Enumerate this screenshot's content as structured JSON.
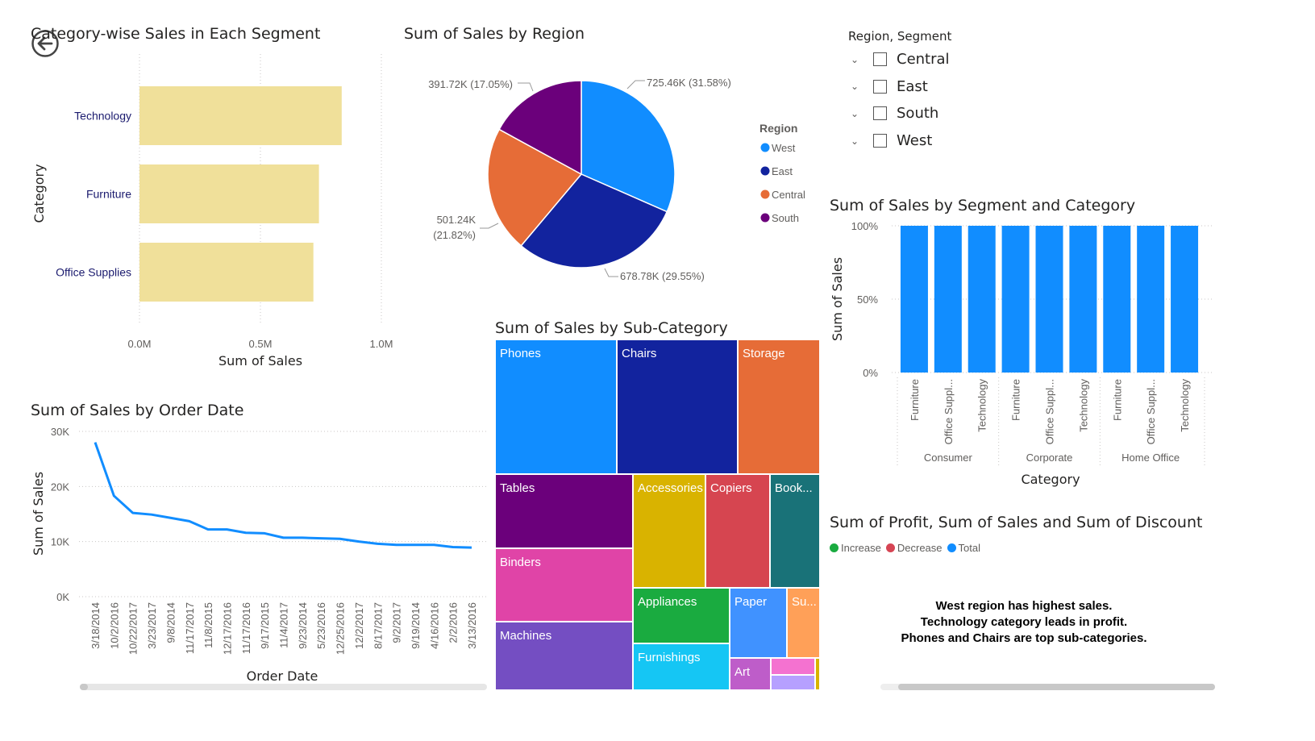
{
  "back_button": {
    "icon": "back-arrow-icon"
  },
  "bar_chart": {
    "title": "Category-wise Sales in Each Segment",
    "color": "#f0e09a"
  },
  "pie_chart": {
    "title": "Sum of Sales by Region",
    "legend_title": "Region"
  },
  "slicer": {
    "title": "Region, Segment",
    "items": [
      "Central",
      "East",
      "South",
      "West"
    ]
  },
  "column_chart": {
    "title": "Sum of Sales by Segment and Category",
    "color": "#118dff"
  },
  "line_chart": {
    "title": "Sum of Sales by Order Date",
    "color": "#118dff"
  },
  "treemap": {
    "title": "Sum of Sales by Sub-Category"
  },
  "waterfall": {
    "title": "Sum of Profit, Sum of Sales and Sum of Discount",
    "legend": [
      {
        "label": "Increase",
        "color": "#1aab40"
      },
      {
        "label": "Decrease",
        "color": "#d64554"
      },
      {
        "label": "Total",
        "color": "#118dff"
      }
    ]
  },
  "insights": {
    "line1": "West region has highest sales.",
    "line2": "Technology category leads in profit.",
    "line3": "Phones and Chairs are top sub-categories."
  },
  "chart_data": [
    {
      "type": "bar",
      "title": "Category-wise Sales in Each Segment",
      "categories": [
        "Technology",
        "Furniture",
        "Office Supplies"
      ],
      "values": [
        0.836,
        0.742,
        0.719
      ],
      "xlabel": "Sum of Sales",
      "ylabel": "Category",
      "xticks": [
        "0.0M",
        "0.5M",
        "1.0M"
      ],
      "xlim": [
        0,
        1.0
      ],
      "grid": true
    },
    {
      "type": "pie",
      "title": "Sum of Sales by Region",
      "labels": [
        "West",
        "East",
        "Central",
        "South"
      ],
      "values": [
        725.46,
        678.78,
        501.24,
        391.72
      ],
      "data_labels": [
        "725.46K (31.58%)",
        "678.78K (29.55%)",
        "501.24K (21.82%)",
        "391.72K (17.05%)"
      ],
      "colors": [
        "#118dff",
        "#12239e",
        "#e66c37",
        "#6b007b"
      ],
      "legend_title": "Region",
      "legend_position": "right"
    },
    {
      "type": "bar",
      "title": "Sum of Sales by Segment and Category",
      "groups": [
        "Consumer",
        "Corporate",
        "Home Office"
      ],
      "categories": [
        "Furniture",
        "Office Suppl...",
        "Technology",
        "Furniture",
        "Office Suppl...",
        "Technology",
        "Furniture",
        "Office Suppl...",
        "Technology"
      ],
      "values": [
        100,
        100,
        100,
        100,
        100,
        100,
        100,
        100,
        100
      ],
      "xlabel": "Category",
      "ylabel": "Sum of Sales",
      "yticks": [
        "0%",
        "50%",
        "100%"
      ],
      "ylim": [
        0,
        100
      ],
      "grid": true
    },
    {
      "type": "line",
      "title": "Sum of Sales by Order Date",
      "x": [
        "3/18/2014",
        "10/2/2016",
        "10/22/2017",
        "3/23/2017",
        "9/8/2014",
        "11/17/2017",
        "11/8/2015",
        "12/17/2016",
        "11/17/2016",
        "9/17/2015",
        "11/4/2017",
        "9/23/2014",
        "5/23/2016",
        "12/25/2016",
        "12/2/2017",
        "8/17/2017",
        "9/2/2017",
        "9/19/2014",
        "4/16/2016",
        "2/2/2016",
        "3/13/2016"
      ],
      "y": [
        28000,
        18300,
        15200,
        14900,
        14300,
        13700,
        12200,
        12200,
        11600,
        11500,
        10700,
        10700,
        10600,
        10500,
        10000,
        9600,
        9400,
        9400,
        9400,
        9000,
        8900
      ],
      "xlabel": "Order Date",
      "ylabel": "Sum of Sales",
      "yticks": [
        "0K",
        "10K",
        "20K",
        "30K"
      ],
      "ylim": [
        0,
        30000
      ],
      "grid": true
    },
    {
      "type": "treemap",
      "title": "Sum of Sales by Sub-Category",
      "labels": [
        "Phones",
        "Chairs",
        "Storage",
        "Tables",
        "Binders",
        "Machines",
        "Accessories",
        "Copiers",
        "Book...",
        "Appliances",
        "Furnishings",
        "Paper",
        "Su...",
        "Art"
      ],
      "colors": [
        "#118dff",
        "#12239e",
        "#e66c37",
        "#6b007b",
        "#e044a7",
        "#744ec2",
        "#d9b300",
        "#d64550",
        "#197278",
        "#1aab40",
        "#15c6f4",
        "#4092ff",
        "#ffa058",
        "#be5dc9"
      ]
    }
  ]
}
